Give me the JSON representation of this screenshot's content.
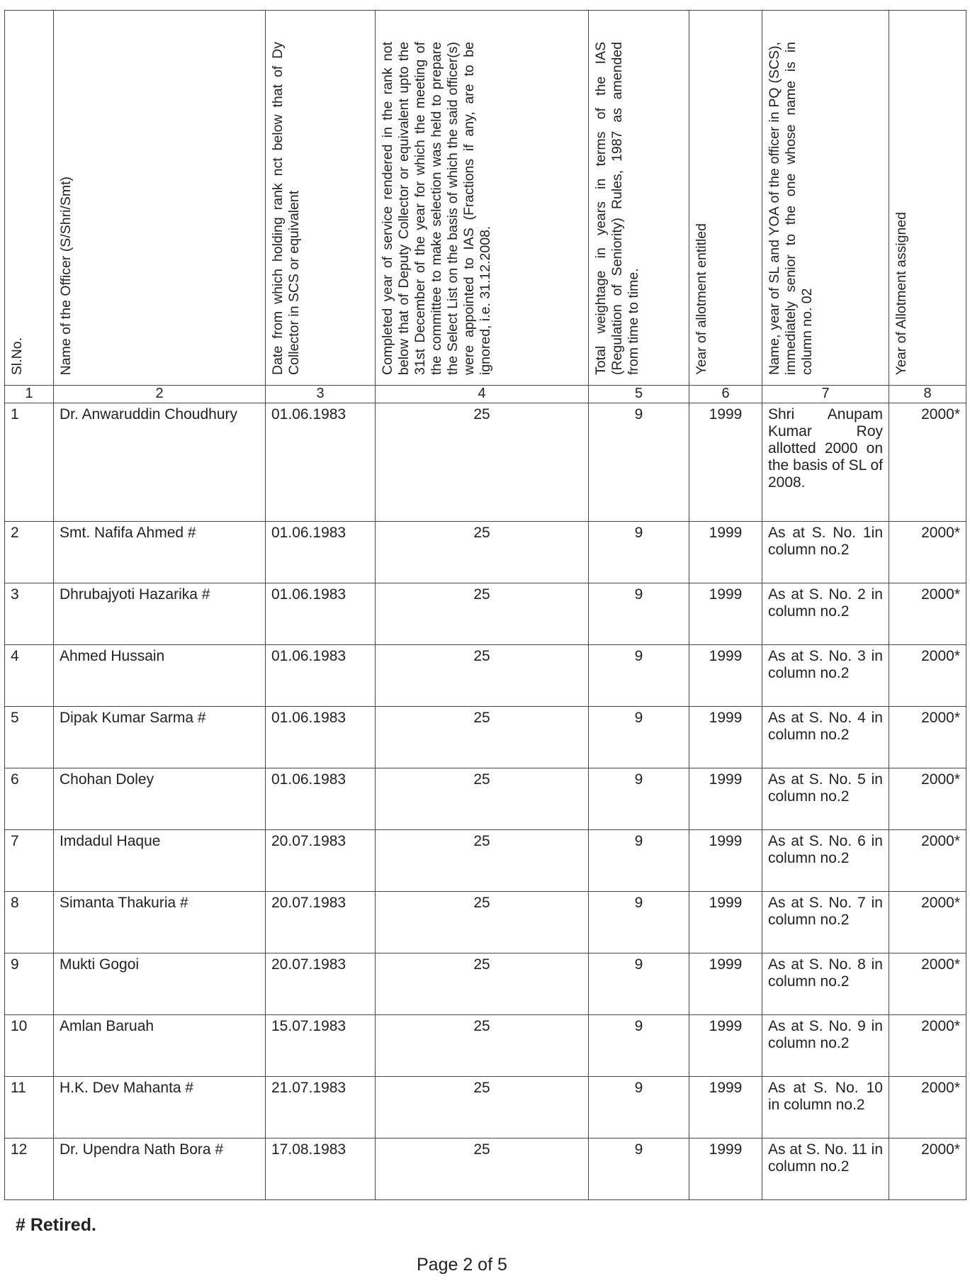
{
  "headers": [
    "Sl.No.",
    "Name of the Officer (S/Shri/Smt)",
    "Date from which holding rank nct below that of Dy Collector in SCS or equivalent",
    "Completed year of service rendered in the rank not below that of Deputy Collector or equivalent upto the 31st December of the year for which the meeting of the committee to make selection was held to prepare the Select List on the basis of which the said officer(s) were appointed to IAS (Fractions if any, are to be ignored, i.e. 31.12.2008.",
    "Total weightage in years in terms of the IAS (Regulation of Seniority) Rules, 1987 as amended from time to time.",
    "Year of allotment entitled",
    "Name, year of SL and YOA of the officer in PQ (SCS), immediately senior to the one whose name is in column no. 02",
    "Year of Allotment assigned"
  ],
  "column_numbers": [
    "1",
    "2",
    "3",
    "4",
    "5",
    "6",
    "7",
    "8"
  ],
  "rows": [
    {
      "sl": "1",
      "name": "Dr. Anwaruddin Choudhury",
      "date": "01.06.1983",
      "years": "25",
      "weightage": "9",
      "entitled": "1999",
      "senior": "Shri Anupam Kumar Roy allotted 2000 on the basis of SL of 2008.",
      "assigned": "2000*"
    },
    {
      "sl": "2",
      "name": "Smt. Nafifa Ahmed #",
      "date": "01.06.1983",
      "years": "25",
      "weightage": "9",
      "entitled": "1999",
      "senior": "As at S. No. 1in column no.2",
      "assigned": "2000*"
    },
    {
      "sl": "3",
      "name": "Dhrubajyoti Hazarika #",
      "date": "01.06.1983",
      "years": "25",
      "weightage": "9",
      "entitled": "1999",
      "senior": "As at S. No. 2 in column no.2",
      "assigned": "2000*"
    },
    {
      "sl": "4",
      "name": "Ahmed Hussain",
      "date": "01.06.1983",
      "years": "25",
      "weightage": "9",
      "entitled": "1999",
      "senior": "As at S. No. 3 in column no.2",
      "assigned": "2000*"
    },
    {
      "sl": "5",
      "name": "Dipak Kumar Sarma #",
      "date": "01.06.1983",
      "years": "25",
      "weightage": "9",
      "entitled": "1999",
      "senior": "As at S. No. 4 in column no.2",
      "assigned": "2000*"
    },
    {
      "sl": "6",
      "name": "Chohan Doley",
      "date": "01.06.1983",
      "years": "25",
      "weightage": "9",
      "entitled": "1999",
      "senior": "As at S. No. 5 in column no.2",
      "assigned": "2000*"
    },
    {
      "sl": "7",
      "name": "Imdadul Haque",
      "date": "20.07.1983",
      "years": "25",
      "weightage": "9",
      "entitled": "1999",
      "senior": "As at S. No. 6 in column no.2",
      "assigned": "2000*"
    },
    {
      "sl": "8",
      "name": "Simanta Thakuria #",
      "date": "20.07.1983",
      "years": "25",
      "weightage": "9",
      "entitled": "1999",
      "senior": "As at S. No. 7 in column no.2",
      "assigned": "2000*"
    },
    {
      "sl": "9",
      "name": "Mukti Gogoi",
      "date": "20.07.1983",
      "years": "25",
      "weightage": "9",
      "entitled": "1999",
      "senior": "As at S. No. 8 in column no.2",
      "assigned": "2000*"
    },
    {
      "sl": "10",
      "name": "Amlan Baruah",
      "date": "15.07.1983",
      "years": "25",
      "weightage": "9",
      "entitled": "1999",
      "senior": "As at S. No. 9 in column no.2",
      "assigned": "2000*"
    },
    {
      "sl": "11",
      "name": "H.K. Dev Mahanta #",
      "date": "21.07.1983",
      "years": "25",
      "weightage": "9",
      "entitled": "1999",
      "senior": "As at S. No. 10 in column no.2",
      "assigned": "2000*"
    },
    {
      "sl": "12",
      "name": "Dr. Upendra Nath Bora #",
      "date": "17.08.1983",
      "years": "25",
      "weightage": "9",
      "entitled": "1999",
      "senior": "As at S. No. 11 in column no.2",
      "assigned": "2000*"
    }
  ],
  "footnote": "# Retired.",
  "page": "Page 2 of 5"
}
